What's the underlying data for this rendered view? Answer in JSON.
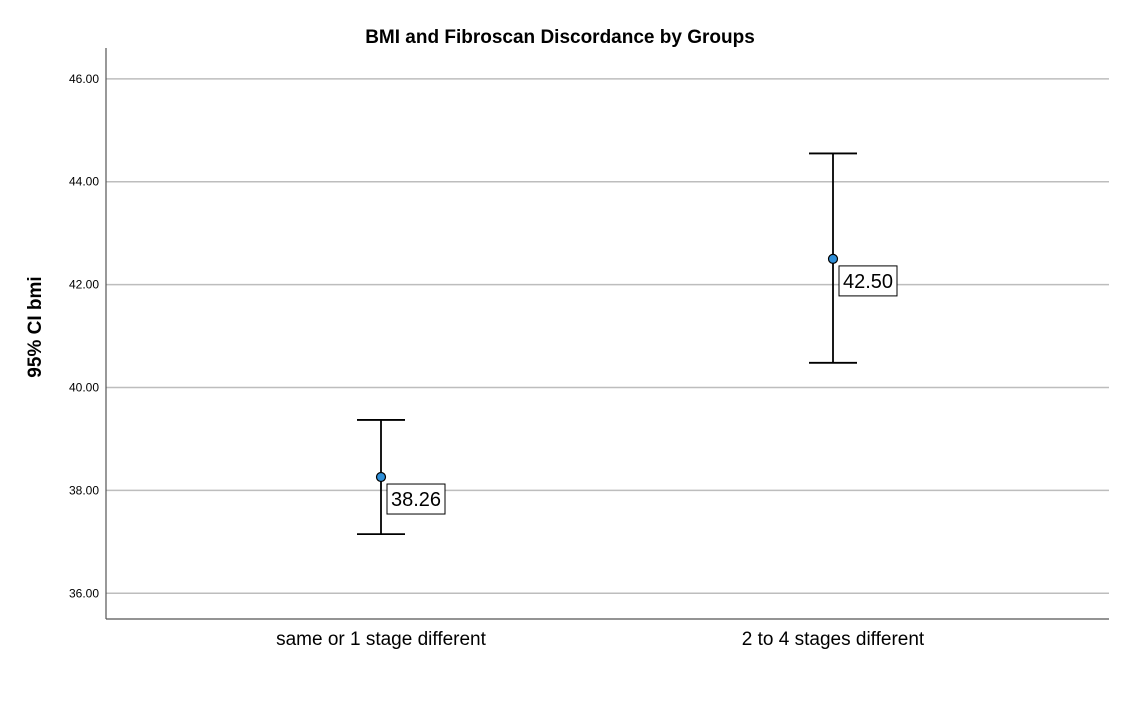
{
  "chart_data": {
    "type": "errorbar",
    "title": "BMI and Fibroscan Discordance by Groups",
    "xlabel": "",
    "ylabel": "95% CI bmi",
    "categories": [
      "same or 1 stage different",
      "2 to 4 stages different"
    ],
    "means": [
      38.26,
      42.5
    ],
    "lower": [
      37.15,
      40.48
    ],
    "upper": [
      39.37,
      44.55
    ],
    "data_labels": [
      "38.26",
      "42.50"
    ],
    "ylim": [
      35.5,
      46.6
    ],
    "yticks": [
      36,
      38,
      40,
      42,
      44,
      46
    ],
    "ytick_labels": [
      "36.00",
      "38.00",
      "40.00",
      "42.00",
      "44.00",
      "46.00"
    ],
    "grid": true,
    "legend": "none",
    "colors": {
      "point": "#2f8fd8",
      "grid": "#bdbdbd",
      "bar": "#000000"
    }
  }
}
